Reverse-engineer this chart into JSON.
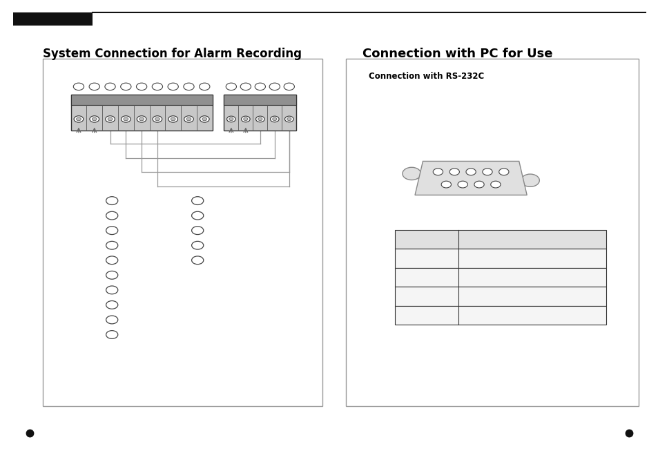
{
  "title_left": "System Connection for Alarm Recording",
  "title_right": "Connection with PC for Use",
  "subtitle_right": "Connection with RS-232C",
  "bg_color": "#ffffff",
  "header_tab_color": "#111111",
  "connector_fill": "#c8c8c8",
  "wire_color": "#999999",
  "circle_edge_color": "#444444",
  "db9_fill": "#e0e0e0",
  "table_header_fill": "#e0e0e0",
  "table_row_fill": "#f5f5f5",
  "panel_border_color": "#999999"
}
